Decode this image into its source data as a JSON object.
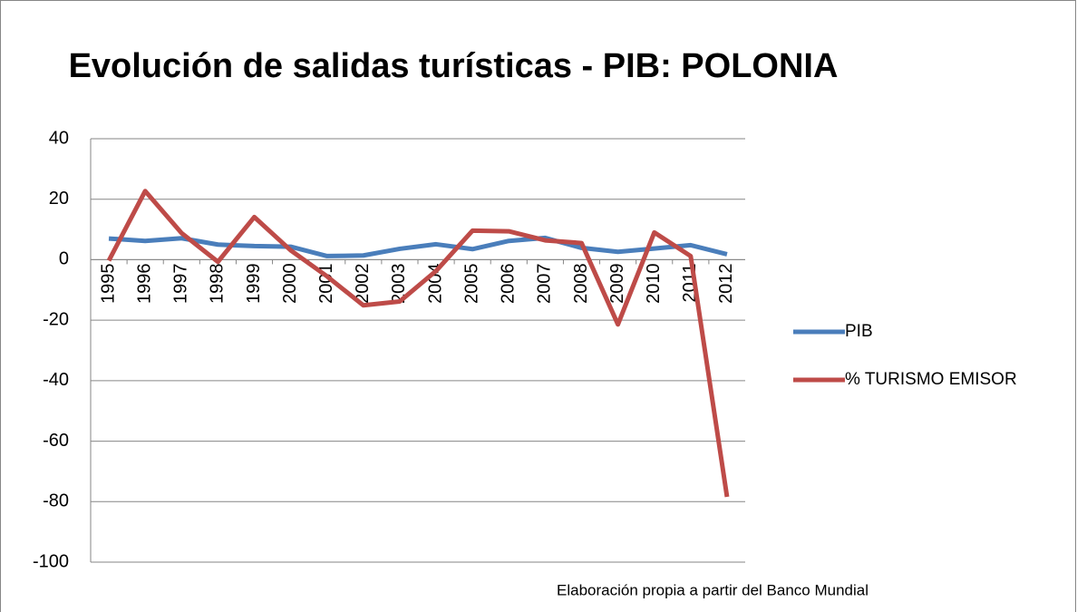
{
  "chart_data": {
    "type": "line",
    "title": "Evolución de salidas turísticas - PIB: POLONIA",
    "source": "Elaboración propia a partir del  Banco  Mundial",
    "categories": [
      "1995",
      "1996",
      "1997",
      "1998",
      "1999",
      "2000",
      "2001",
      "2002",
      "2003",
      "2004",
      "2005",
      "2006",
      "2007",
      "2008",
      "2009",
      "2010",
      "2011",
      "2012"
    ],
    "series": [
      {
        "name": "PIB",
        "color": "#4a7ebb",
        "values": [
          7.0,
          6.2,
          7.1,
          5.0,
          4.5,
          4.3,
          1.2,
          1.4,
          3.6,
          5.1,
          3.5,
          6.2,
          7.2,
          3.9,
          2.6,
          3.7,
          4.8,
          1.8
        ]
      },
      {
        "name": "% TURISMO EMISOR",
        "color": "#be4b48",
        "values": [
          -0.3,
          22.7,
          8.8,
          -0.7,
          14.1,
          3.1,
          -5.5,
          -15.1,
          -13.8,
          -3.7,
          9.6,
          9.4,
          6.4,
          5.5,
          -21.4,
          9.0,
          1.2,
          -78.4
        ]
      }
    ],
    "ylim": [
      -100,
      40
    ],
    "yticks": [
      -100,
      -80,
      -60,
      -40,
      -20,
      0,
      20,
      40
    ],
    "grid": true,
    "legend": "right"
  }
}
